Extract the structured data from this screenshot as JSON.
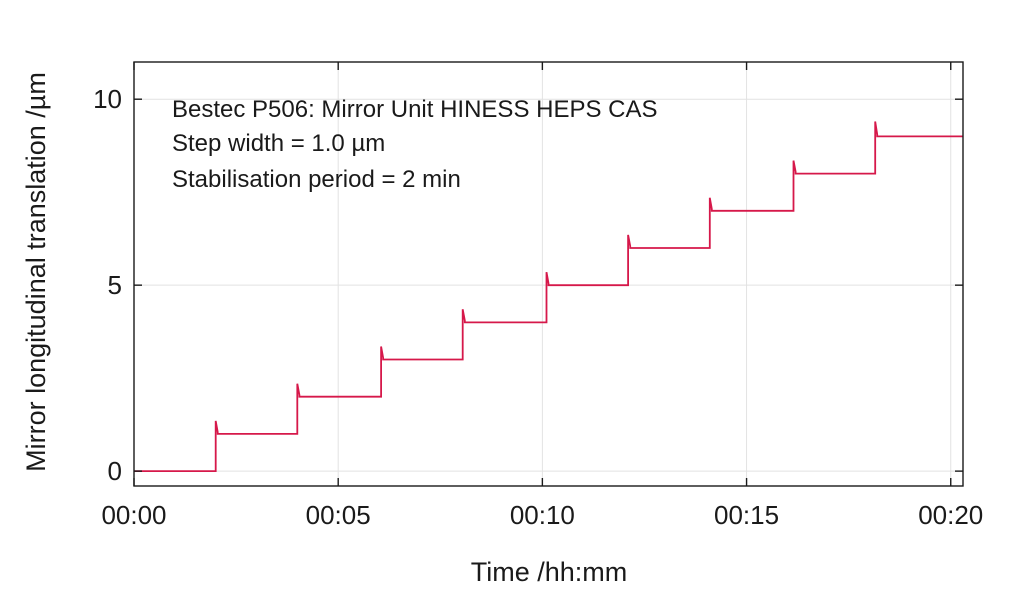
{
  "chart_data": {
    "type": "line",
    "xlabel": "Time /hh:mm",
    "ylabel": "Mirror longitudinal translation /µm",
    "annotations": [
      "Bestec P506: Mirror Unit HINESS HEPS CAS",
      "Step width = 1.0 µm",
      "Stabilisation period = 2 min"
    ],
    "x_unit": "minutes",
    "xlim": [
      0,
      20.3
    ],
    "ylim": [
      -0.4,
      11.0
    ],
    "x_ticks": [
      0,
      5,
      10,
      15,
      20
    ],
    "x_tick_labels": [
      "00:00",
      "00:05",
      "00:10",
      "00:15",
      "00:20"
    ],
    "y_ticks": [
      0,
      5,
      10
    ],
    "y_tick_labels": [
      "0",
      "5",
      "10"
    ],
    "grid": true,
    "series": [
      {
        "color": "#d6184a",
        "x": [
          0,
          2.0,
          2.0,
          2.05,
          2.05,
          4.0,
          4.0,
          4.05,
          4.05,
          6.05,
          6.05,
          6.1,
          6.1,
          8.05,
          8.05,
          8.1,
          8.1,
          10.1,
          10.1,
          10.15,
          10.15,
          12.1,
          12.1,
          12.15,
          12.15,
          14.1,
          14.1,
          14.15,
          14.15,
          16.15,
          16.15,
          16.2,
          16.2,
          18.15,
          18.15,
          18.2,
          18.2,
          20.3
        ],
        "y": [
          0,
          0,
          1.35,
          1.05,
          1.0,
          1.0,
          2.35,
          2.05,
          2.0,
          2.0,
          3.35,
          3.05,
          3.0,
          3.0,
          4.35,
          4.05,
          4.0,
          4.0,
          5.35,
          5.05,
          5.0,
          5.0,
          6.35,
          6.05,
          6.0,
          6.0,
          7.35,
          7.05,
          7.0,
          7.0,
          8.35,
          8.05,
          8.0,
          8.0,
          9.4,
          9.05,
          9.0,
          9.0
        ]
      }
    ]
  }
}
